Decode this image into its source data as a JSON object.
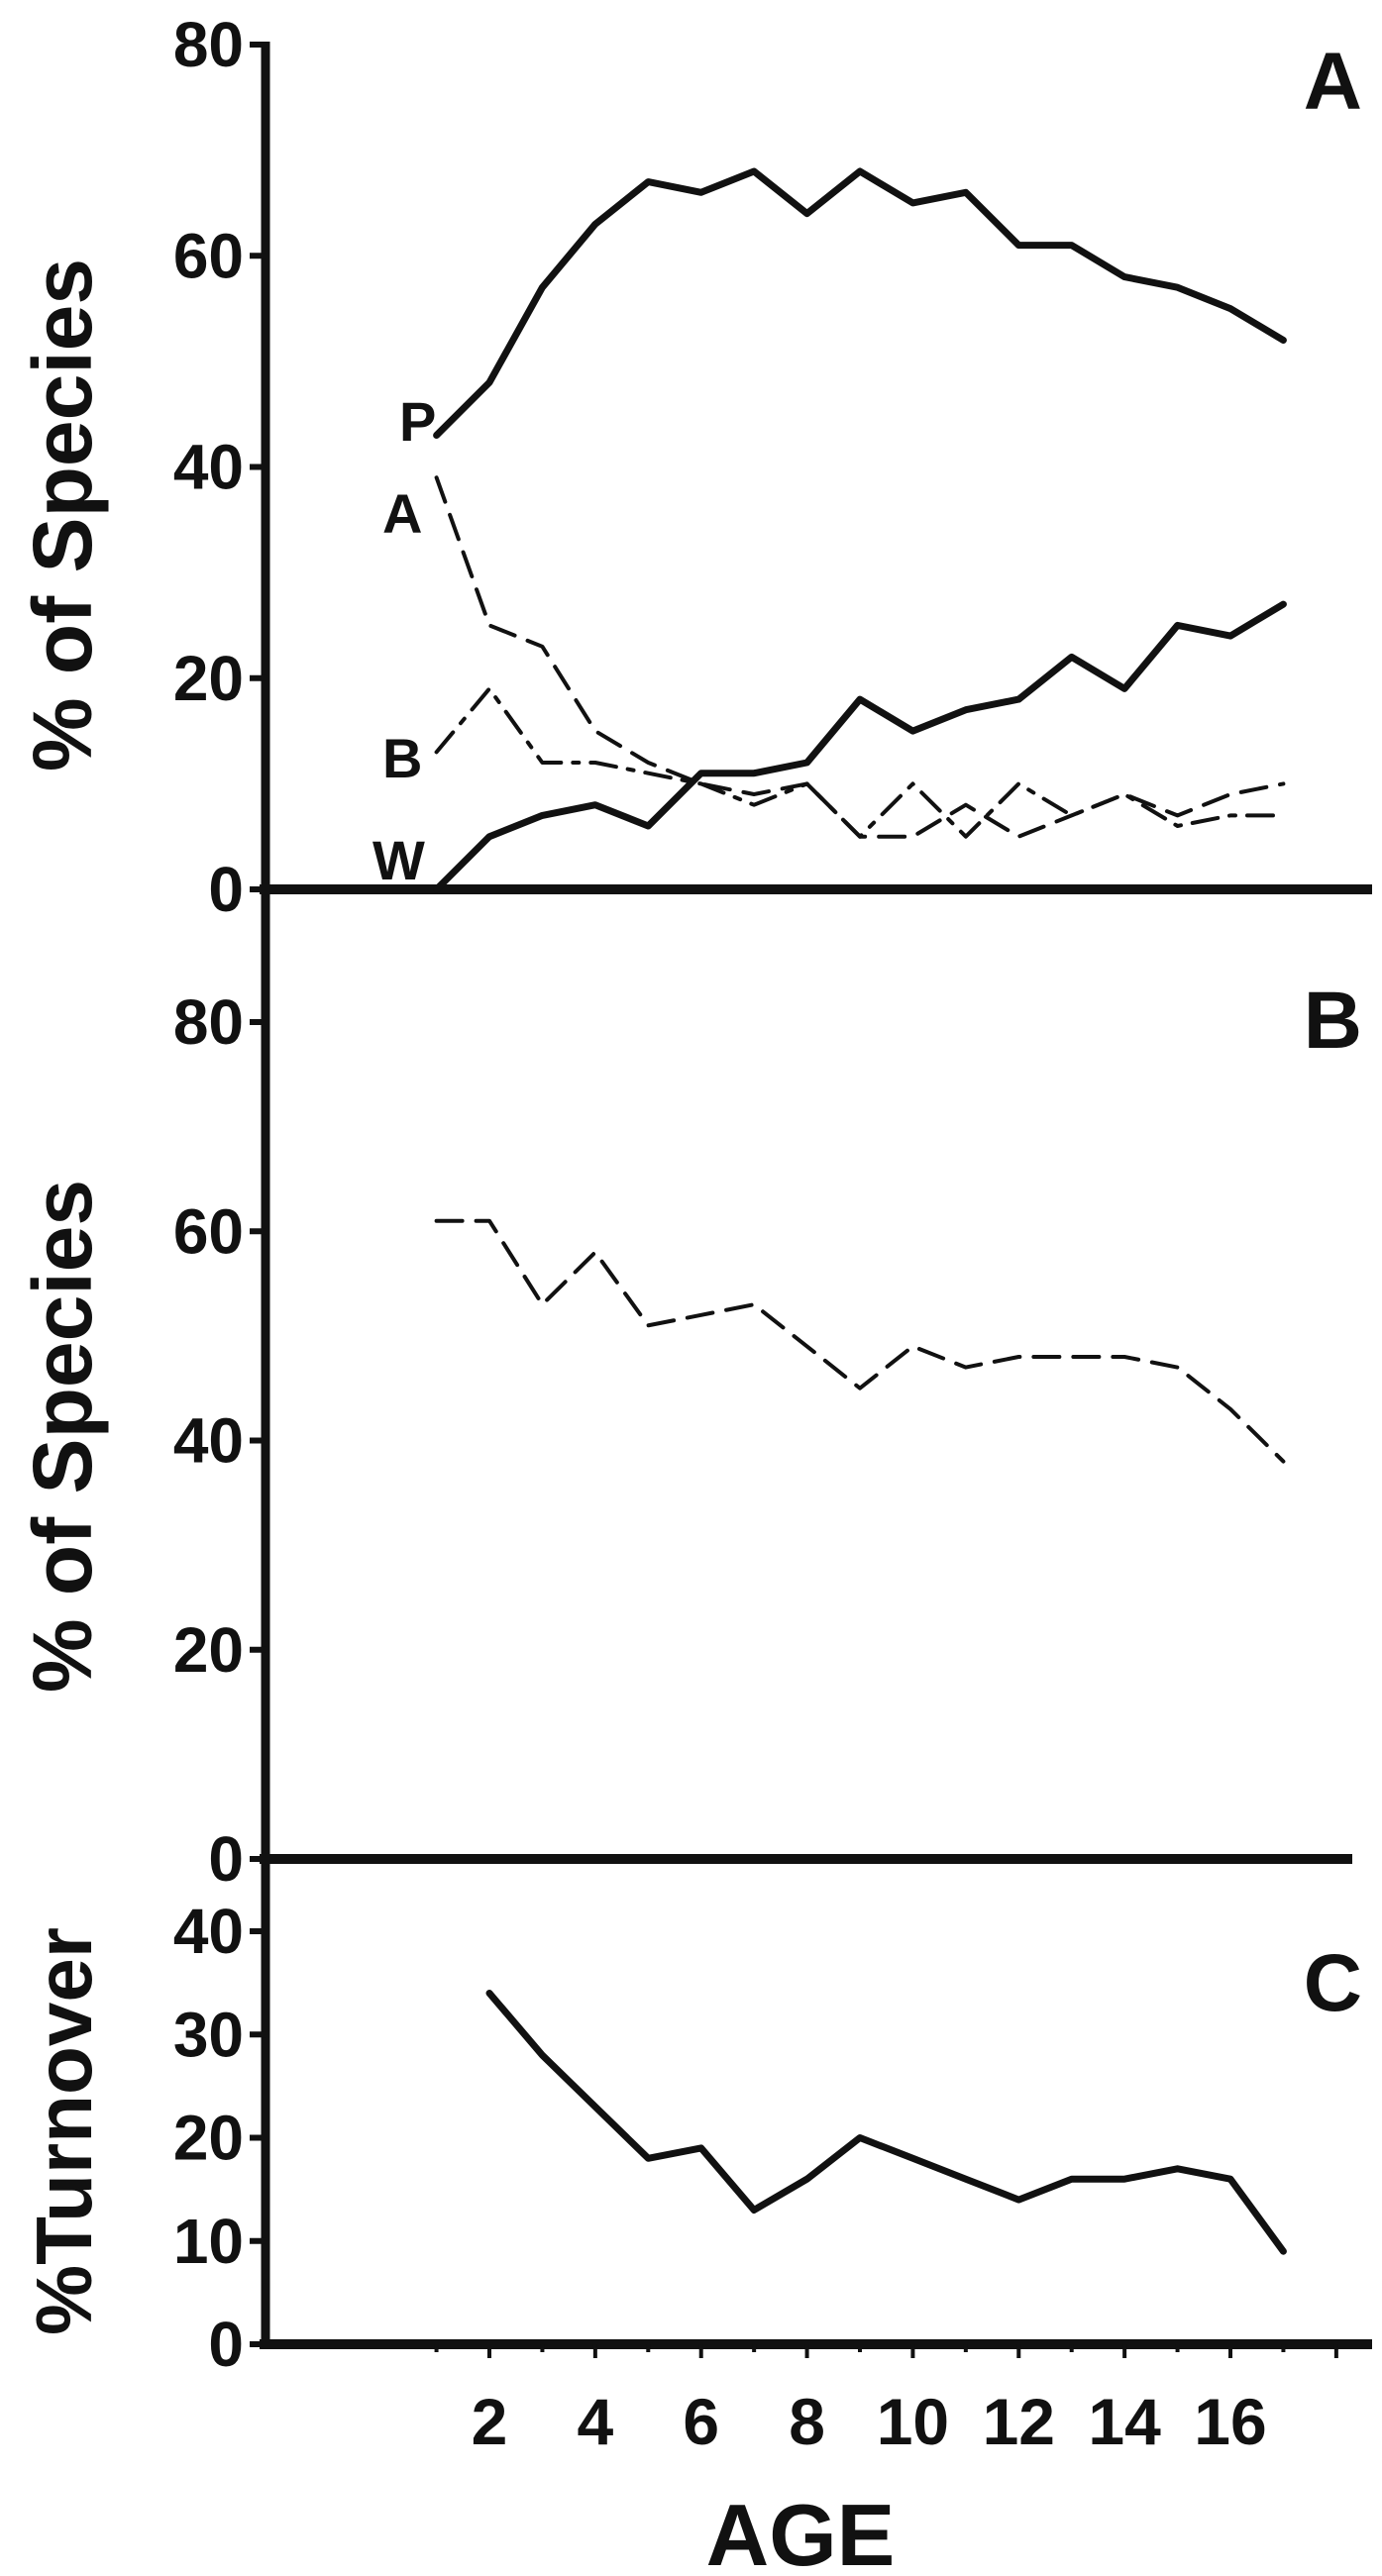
{
  "x_axis": {
    "label": "AGE",
    "ticks": [
      2,
      4,
      6,
      8,
      10,
      12,
      14,
      16
    ],
    "range": [
      -0.3,
      19.8
    ]
  },
  "chart_data": [
    {
      "panel": "A",
      "type": "line",
      "ylabel": "% of Species",
      "ylim": [
        0,
        80
      ],
      "yticks": [
        0,
        20,
        40,
        60,
        80
      ],
      "series": [
        {
          "name": "P",
          "line_style": "solid",
          "x": [
            1,
            2,
            3,
            4,
            5,
            6,
            7,
            8,
            9,
            10,
            11,
            12,
            13,
            14,
            15,
            16,
            17
          ],
          "values": [
            43,
            48,
            57,
            63,
            67,
            66,
            68,
            64,
            68,
            65,
            66,
            61,
            61,
            58,
            57,
            55,
            52
          ]
        },
        {
          "name": "A",
          "line_style": "dashed",
          "x": [
            1,
            2,
            3,
            4,
            5,
            6,
            7,
            8,
            9,
            10,
            11,
            12,
            13,
            14,
            15,
            16,
            17
          ],
          "values": [
            39,
            25,
            23,
            15,
            12,
            10,
            9,
            10,
            5,
            5,
            8,
            5,
            7,
            9,
            7,
            9,
            10
          ]
        },
        {
          "name": "B",
          "line_style": "dash-dot",
          "x": [
            1,
            2,
            3,
            4,
            5,
            6,
            7,
            8,
            9,
            10,
            11,
            12,
            13,
            14,
            15,
            16,
            17
          ],
          "values": [
            13,
            19,
            12,
            12,
            11,
            10,
            8,
            10,
            5,
            10,
            5,
            10,
            7,
            9,
            6,
            7,
            7
          ]
        },
        {
          "name": "W",
          "line_style": "solid",
          "x": [
            1,
            2,
            3,
            4,
            5,
            6,
            7,
            8,
            9,
            10,
            11,
            12,
            13,
            14,
            15,
            16,
            17
          ],
          "values": [
            0,
            5,
            7,
            8,
            6,
            11,
            11,
            12,
            18,
            15,
            17,
            18,
            22,
            19,
            25,
            24,
            27
          ]
        }
      ]
    },
    {
      "panel": "B",
      "type": "line",
      "ylabel": "% of Species",
      "ylim": [
        0,
        80
      ],
      "yticks": [
        0,
        20,
        40,
        60,
        80
      ],
      "series": [
        {
          "line_style": "dashed",
          "x": [
            1,
            2,
            3,
            4,
            5,
            6,
            7,
            8,
            9,
            10,
            11,
            12,
            13,
            14,
            15,
            16,
            17
          ],
          "values": [
            61,
            61,
            53,
            58,
            51,
            52,
            53,
            49,
            45,
            49,
            47,
            48,
            48,
            48,
            47,
            43,
            38
          ]
        }
      ]
    },
    {
      "panel": "C",
      "type": "line",
      "ylabel": "%Turnover",
      "ylim": [
        0,
        40
      ],
      "yticks": [
        0,
        10,
        20,
        30,
        40
      ],
      "series": [
        {
          "line_style": "solid",
          "x": [
            2,
            3,
            4,
            5,
            6,
            7,
            8,
            9,
            10,
            11,
            12,
            13,
            14,
            15,
            16,
            17
          ],
          "values": [
            34,
            28,
            23,
            18,
            19,
            13,
            16,
            20,
            18,
            16,
            14,
            16,
            16,
            17,
            16,
            9
          ]
        }
      ]
    }
  ]
}
